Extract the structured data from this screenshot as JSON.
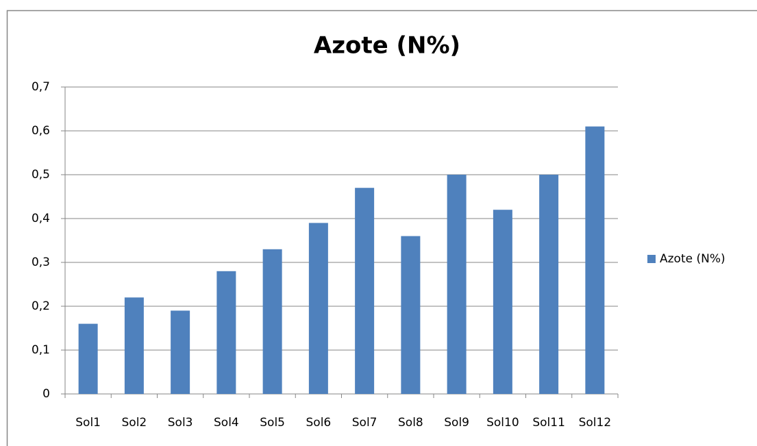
{
  "chart_data": {
    "type": "bar",
    "title": "Azote  (N%)",
    "categories": [
      "Sol1",
      "Sol2",
      "Sol3",
      "Sol4",
      "Sol5",
      "Sol6",
      "Sol7",
      "Sol8",
      "Sol9",
      "Sol10",
      "Sol11",
      "Sol12"
    ],
    "series": [
      {
        "name": "Azote  (N%)",
        "color": "#4f81bd",
        "values": [
          0.16,
          0.22,
          0.19,
          0.28,
          0.33,
          0.39,
          0.47,
          0.36,
          0.5,
          0.42,
          0.5,
          0.61
        ]
      }
    ],
    "ylim": [
      0,
      0.7
    ],
    "yticks": [
      0,
      {
        "value": 0.1,
        "label": "0,1"
      },
      {
        "value": 0.2,
        "label": "0,2"
      },
      {
        "value": 0.3,
        "label": "0,3"
      },
      {
        "value": 0.4,
        "label": "0,4"
      },
      {
        "value": 0.5,
        "label": "0,5"
      },
      {
        "value": 0.6,
        "label": "0,6"
      },
      {
        "value": 0.7,
        "label": "0,7"
      }
    ],
    "grid": true,
    "legend": "right"
  }
}
